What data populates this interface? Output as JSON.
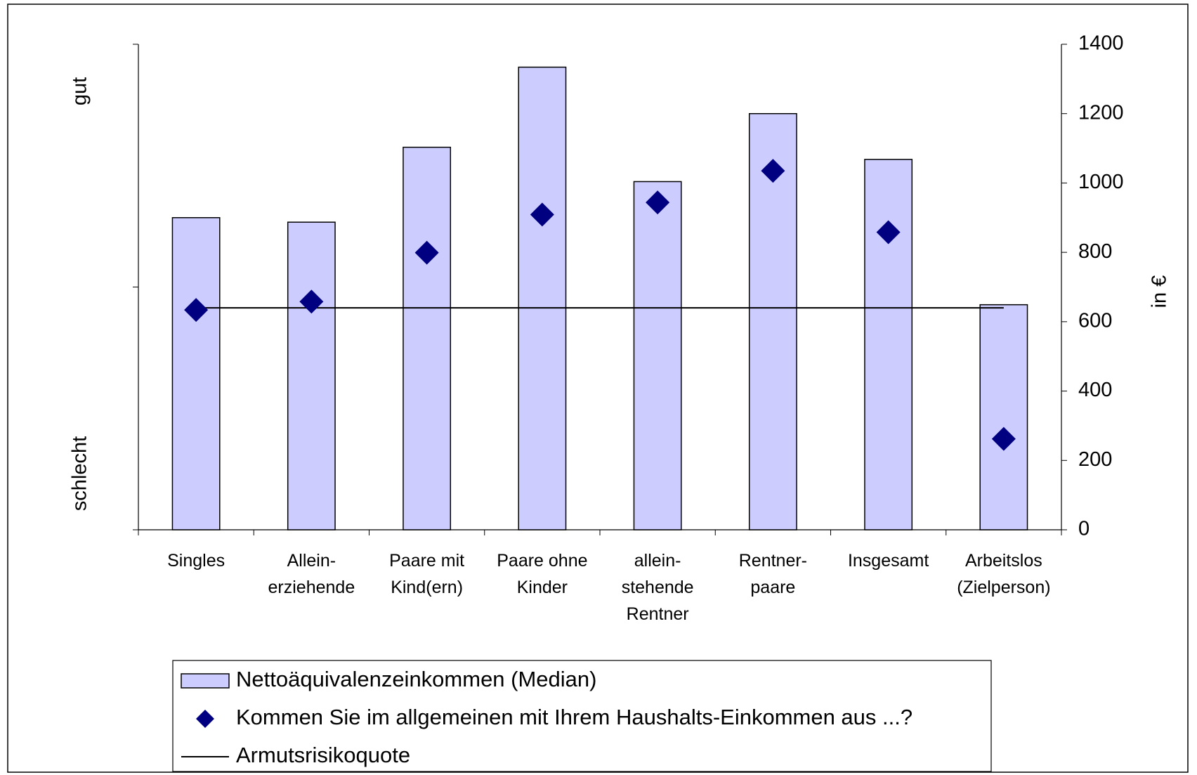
{
  "chart_data": {
    "type": "bar",
    "categories": [
      "Singles",
      "Allein-\nerziehende",
      "Paare mit\nKind(ern)",
      "Paare ohne\nKinder",
      "allein-\nstehende\nRentner",
      "Rentner-\npaare",
      "Insgesamt",
      "Arbeitslos\n(Zielperson)"
    ],
    "series": [
      {
        "name": "Nettoäquivalenzeinkommen (Median)",
        "type": "bar",
        "color": "#ccccff",
        "values": [
          900,
          887,
          1103,
          1334,
          1004,
          1200,
          1068,
          649
        ]
      },
      {
        "name": "Kommen Sie im allgemeinen mit Ihrem Haushalts-Einkommen aus ...?",
        "type": "scatter",
        "color": "#000080",
        "values": [
          634,
          658,
          799,
          909,
          944,
          1035,
          858,
          262
        ]
      },
      {
        "name": "Armutsrisikoquote",
        "type": "line",
        "color": "#000000",
        "values": [
          640,
          640,
          640,
          640,
          640,
          640,
          640,
          640
        ]
      }
    ],
    "ylim": [
      0,
      1400
    ],
    "yticks": [
      0,
      200,
      400,
      600,
      800,
      1000,
      1200,
      1400
    ],
    "y_axis_label": "in €",
    "left_axis_labels": [
      "gut",
      "schlecht"
    ],
    "grid": false
  }
}
